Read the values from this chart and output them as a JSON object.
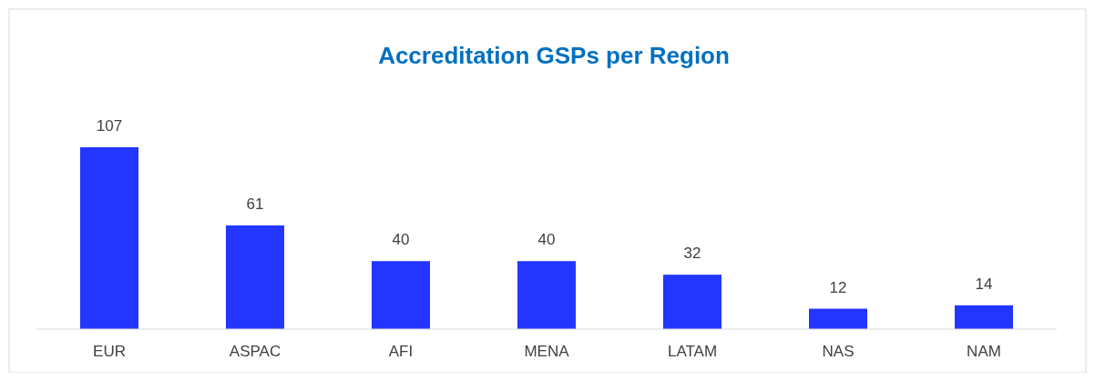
{
  "chart_data": {
    "type": "bar",
    "title": "Accreditation GSPs per Region",
    "categories": [
      "EUR",
      "ASPAC",
      "AFI",
      "MENA",
      "LATAM",
      "NAS",
      "NAM"
    ],
    "values": [
      107,
      61,
      40,
      40,
      32,
      12,
      14
    ],
    "color": "#2236ff",
    "data_labels": true
  }
}
